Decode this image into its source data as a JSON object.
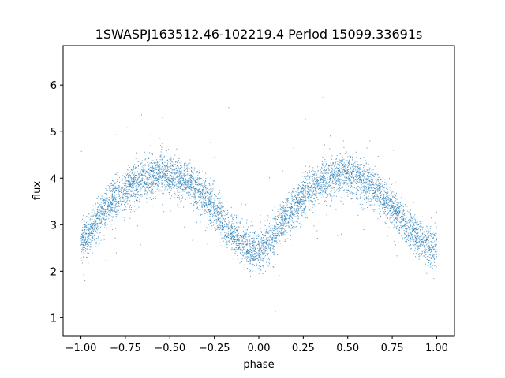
{
  "chart_data": {
    "type": "scatter",
    "title": "1SWASPJ163512.46-102219.4 Period 15099.33691s",
    "xlabel": "phase",
    "ylabel": "flux",
    "xlim": [
      -1.1,
      1.1
    ],
    "ylim": [
      0.6,
      6.85
    ],
    "xticks": [
      -1.0,
      -0.75,
      -0.5,
      -0.25,
      0.0,
      0.25,
      0.5,
      0.75,
      1.0
    ],
    "xtick_labels": [
      "−1.00",
      "−0.75",
      "−0.50",
      "−0.25",
      "0.00",
      "0.25",
      "0.50",
      "0.75",
      "1.00"
    ],
    "yticks": [
      1,
      2,
      3,
      4,
      5,
      6
    ],
    "ytick_labels": [
      "1",
      "2",
      "3",
      "4",
      "5",
      "6"
    ],
    "grid": false,
    "point_color": "#1f77b4",
    "series": [
      {
        "x": [
          -1.0,
          -0.95,
          -0.9,
          -0.85,
          -0.8,
          -0.75,
          -0.7,
          -0.65,
          -0.6,
          -0.55,
          -0.5,
          -0.45,
          -0.4,
          -0.35,
          -0.3,
          -0.25,
          -0.2,
          -0.15,
          -0.1,
          -0.05,
          0.0,
          0.05,
          0.1,
          0.15,
          0.2,
          0.25,
          0.3,
          0.35,
          0.4,
          0.45,
          0.5,
          0.55,
          0.6,
          0.65,
          0.7,
          0.75,
          0.8,
          0.85,
          0.9,
          0.95,
          1.0
        ],
        "y": [
          2.6,
          2.85,
          3.15,
          3.4,
          3.6,
          3.75,
          3.9,
          4.0,
          4.05,
          4.1,
          4.05,
          4.0,
          3.9,
          3.75,
          3.55,
          3.35,
          3.05,
          2.8,
          2.6,
          2.45,
          2.4,
          2.6,
          2.85,
          3.15,
          3.4,
          3.6,
          3.8,
          3.9,
          4.0,
          4.05,
          4.1,
          4.0,
          3.9,
          3.8,
          3.6,
          3.4,
          3.15,
          2.9,
          2.7,
          2.55,
          2.45
        ]
      }
    ]
  }
}
